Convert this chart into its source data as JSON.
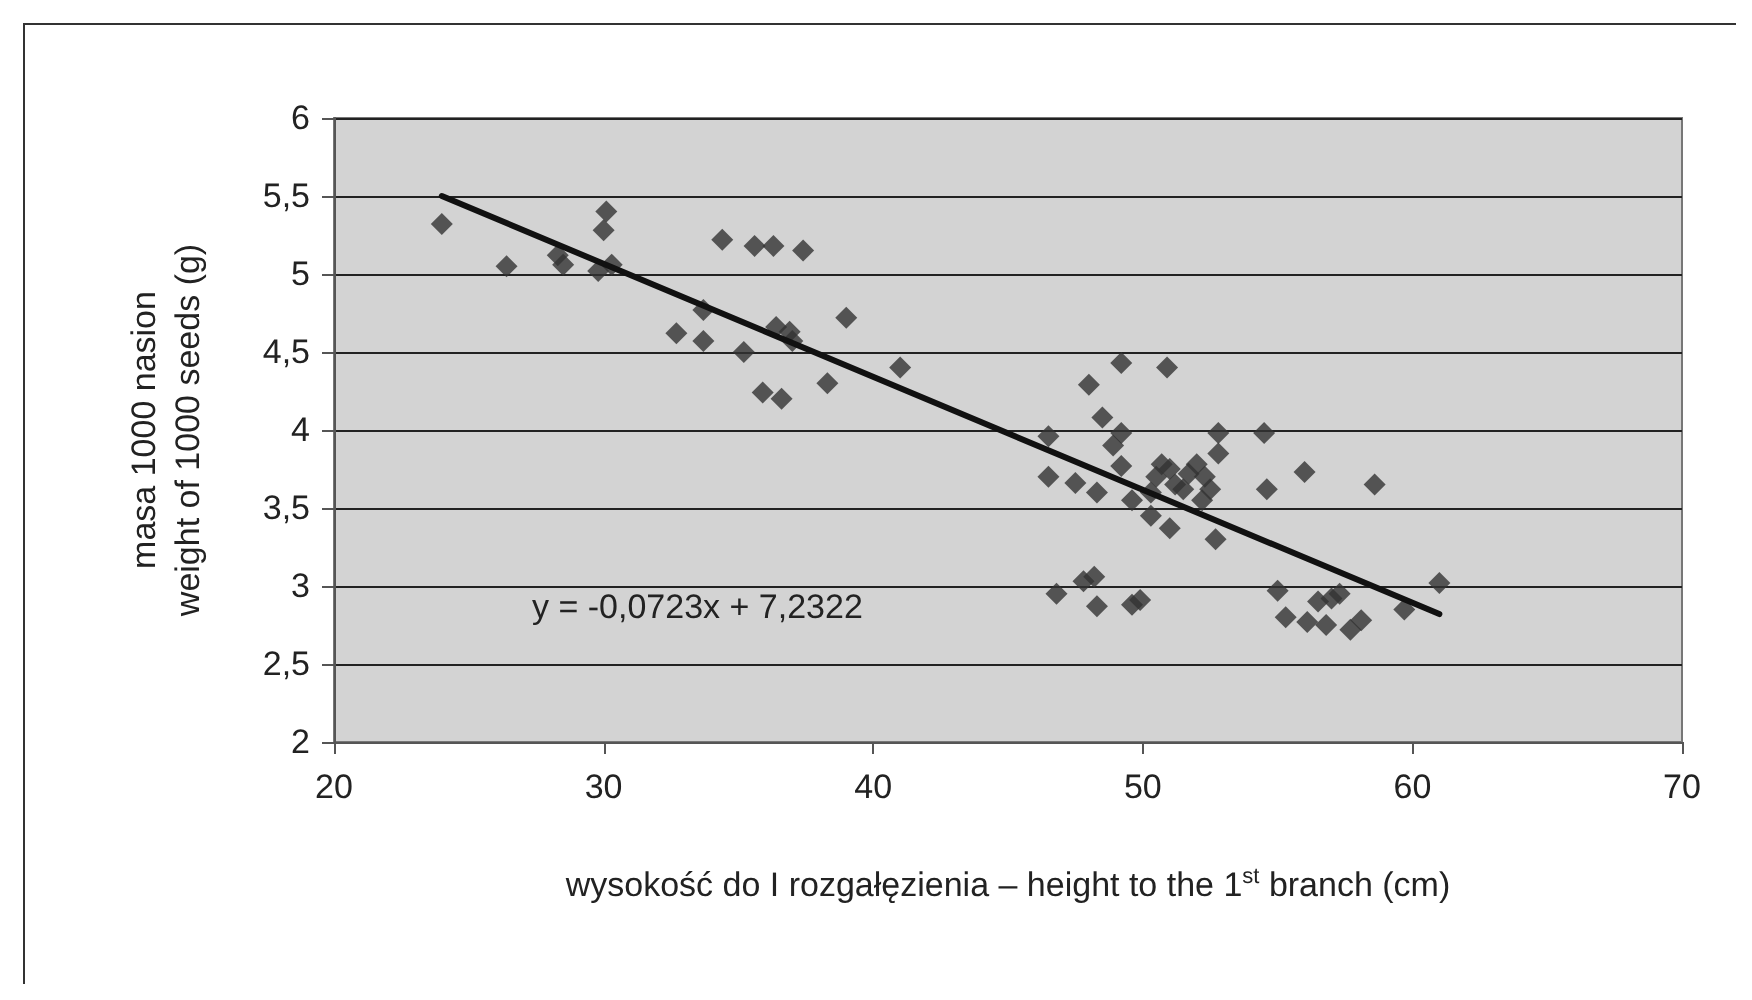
{
  "chart_data": {
    "type": "scatter",
    "xlabel": "wysokość do I rozgałęzienia – height to the 1$^{st}$ branch (cm)",
    "ylabel": "masa 1000 nasion\nweight of 1000 seeds (g)",
    "annotations": [
      "y = -0,0723x + 7,2322"
    ],
    "xlim": [
      20,
      70
    ],
    "xticks": [
      20,
      30,
      40,
      50,
      60,
      70
    ],
    "ylim": [
      2,
      6
    ],
    "yticks": [
      {
        "value": 2,
        "label": "2"
      },
      {
        "value": 2.5,
        "label": "2,5"
      },
      {
        "value": 3,
        "label": "3"
      },
      {
        "value": 3.5,
        "label": "3,5"
      },
      {
        "value": 4,
        "label": "4"
      },
      {
        "value": 4.5,
        "label": "4,5"
      },
      {
        "value": 5,
        "label": "5"
      },
      {
        "value": 5.5,
        "label": "5,5"
      },
      {
        "value": 6,
        "label": "6"
      }
    ],
    "grid": "y",
    "marker": "diamond",
    "series": [
      {
        "color": "#333333",
        "x": [
          24.0,
          26.4,
          28.3,
          28.5,
          29.8,
          30.0,
          30.1,
          30.3,
          32.7,
          33.7,
          33.7,
          34.4,
          35.2,
          35.6,
          35.9,
          36.3,
          36.4,
          36.6,
          36.9,
          37.0,
          37.4,
          38.3,
          39.0,
          41.0,
          46.5,
          46.5,
          46.8,
          47.5,
          47.8,
          48.0,
          48.2,
          48.3,
          48.3,
          48.5,
          48.9,
          49.2,
          49.2,
          49.2,
          49.6,
          49.6,
          49.9,
          50.3,
          50.5,
          50.7,
          50.9,
          51.0,
          51.2,
          51.5,
          51.7,
          52.0,
          52.2,
          52.3,
          52.5,
          52.7,
          52.8,
          52.8,
          54.5,
          54.6,
          55.0,
          55.3,
          56.0,
          56.1,
          56.5,
          56.8,
          57.0,
          57.3,
          57.7,
          58.1,
          58.6,
          59.7,
          61.0,
          51.0,
          50.3
        ],
        "values": [
          5.32,
          5.05,
          5.12,
          5.06,
          5.02,
          5.28,
          5.4,
          5.06,
          4.62,
          4.77,
          4.57,
          5.22,
          4.5,
          5.18,
          4.24,
          5.18,
          4.66,
          4.2,
          4.63,
          4.57,
          5.15,
          4.3,
          4.72,
          4.4,
          3.96,
          3.7,
          2.95,
          3.66,
          3.03,
          4.29,
          3.06,
          2.87,
          3.6,
          4.08,
          3.9,
          3.98,
          4.43,
          3.77,
          3.55,
          2.88,
          2.91,
          3.6,
          3.7,
          3.78,
          4.4,
          3.37,
          3.65,
          3.62,
          3.72,
          3.78,
          3.55,
          3.7,
          3.62,
          3.3,
          3.98,
          3.85,
          3.98,
          3.62,
          2.97,
          2.8,
          3.73,
          2.77,
          2.9,
          2.75,
          2.92,
          2.95,
          2.72,
          2.78,
          3.65,
          2.85,
          3.02,
          3.75,
          3.45
        ]
      },
      {
        "type": "line",
        "color": "#111111",
        "marker": "none",
        "x": [
          24,
          61
        ],
        "values": [
          5.5,
          2.82
        ]
      }
    ]
  }
}
